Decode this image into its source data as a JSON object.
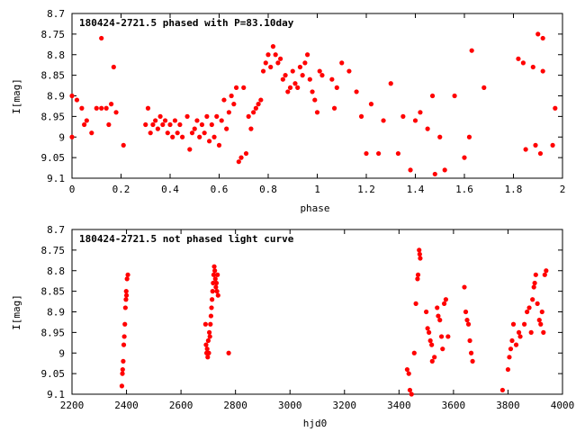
{
  "colors": {
    "points": "#ff0000",
    "axes": "#000000",
    "background": "#ffffff"
  },
  "chart_data": [
    {
      "type": "scatter",
      "title": "180424-2721.5 phased with P=83.10day",
      "xlabel": "phase",
      "ylabel": "I[mag]",
      "xlim": [
        0,
        2
      ],
      "ylim": [
        8.7,
        9.1
      ],
      "y_inverted": true,
      "grid": false,
      "legend": "none",
      "xticks": [
        "0",
        "0.2",
        "0.4",
        "0.6",
        "0.8",
        "1",
        "1.2",
        "1.4",
        "1.6",
        "1.8",
        "2"
      ],
      "yticks": [
        "8.7",
        "8.75",
        "8.8",
        "8.85",
        "8.9",
        "8.95",
        "9",
        "9.05",
        "9.1"
      ],
      "points": [
        [
          0.0,
          8.9
        ],
        [
          0.0,
          9.0
        ],
        [
          0.02,
          8.91
        ],
        [
          0.04,
          8.93
        ],
        [
          0.05,
          8.97
        ],
        [
          0.06,
          8.96
        ],
        [
          0.08,
          8.99
        ],
        [
          0.1,
          8.93
        ],
        [
          0.12,
          8.76
        ],
        [
          0.12,
          8.93
        ],
        [
          0.14,
          8.93
        ],
        [
          0.15,
          8.97
        ],
        [
          0.16,
          8.92
        ],
        [
          0.17,
          8.83
        ],
        [
          0.18,
          8.94
        ],
        [
          0.21,
          9.02
        ],
        [
          0.3,
          8.97
        ],
        [
          0.31,
          8.93
        ],
        [
          0.32,
          8.99
        ],
        [
          0.33,
          8.97
        ],
        [
          0.34,
          8.96
        ],
        [
          0.35,
          8.98
        ],
        [
          0.36,
          8.95
        ],
        [
          0.37,
          8.97
        ],
        [
          0.38,
          8.96
        ],
        [
          0.39,
          8.99
        ],
        [
          0.4,
          8.97
        ],
        [
          0.41,
          9.0
        ],
        [
          0.42,
          8.96
        ],
        [
          0.43,
          8.99
        ],
        [
          0.44,
          8.97
        ],
        [
          0.45,
          9.0
        ],
        [
          0.47,
          8.95
        ],
        [
          0.48,
          9.03
        ],
        [
          0.49,
          8.99
        ],
        [
          0.5,
          8.98
        ],
        [
          0.51,
          8.96
        ],
        [
          0.52,
          9.0
        ],
        [
          0.53,
          8.97
        ],
        [
          0.54,
          8.99
        ],
        [
          0.55,
          8.95
        ],
        [
          0.56,
          9.01
        ],
        [
          0.57,
          8.97
        ],
        [
          0.58,
          9.0
        ],
        [
          0.59,
          8.95
        ],
        [
          0.6,
          9.02
        ],
        [
          0.61,
          8.96
        ],
        [
          0.62,
          8.91
        ],
        [
          0.63,
          8.98
        ],
        [
          0.64,
          8.94
        ],
        [
          0.65,
          8.9
        ],
        [
          0.66,
          8.92
        ],
        [
          0.67,
          8.88
        ],
        [
          0.68,
          9.06
        ],
        [
          0.69,
          9.05
        ],
        [
          0.7,
          8.88
        ],
        [
          0.71,
          9.04
        ],
        [
          0.72,
          8.95
        ],
        [
          0.73,
          8.98
        ],
        [
          0.74,
          8.94
        ],
        [
          0.75,
          8.93
        ],
        [
          0.76,
          8.92
        ],
        [
          0.77,
          8.91
        ],
        [
          0.78,
          8.84
        ],
        [
          0.79,
          8.82
        ],
        [
          0.8,
          8.8
        ],
        [
          0.81,
          8.83
        ],
        [
          0.82,
          8.78
        ],
        [
          0.83,
          8.8
        ],
        [
          0.84,
          8.82
        ],
        [
          0.85,
          8.81
        ],
        [
          0.86,
          8.86
        ],
        [
          0.87,
          8.85
        ],
        [
          0.88,
          8.89
        ],
        [
          0.89,
          8.88
        ],
        [
          0.9,
          8.84
        ],
        [
          0.91,
          8.87
        ],
        [
          0.92,
          8.88
        ],
        [
          0.93,
          8.83
        ],
        [
          0.94,
          8.85
        ],
        [
          0.95,
          8.82
        ],
        [
          0.96,
          8.8
        ],
        [
          0.97,
          8.86
        ],
        [
          0.98,
          8.89
        ],
        [
          0.99,
          8.91
        ],
        [
          1.0,
          8.94
        ],
        [
          1.01,
          8.84
        ],
        [
          1.02,
          8.85
        ],
        [
          1.06,
          8.86
        ],
        [
          1.07,
          8.93
        ],
        [
          1.08,
          8.88
        ],
        [
          1.1,
          8.82
        ],
        [
          1.13,
          8.84
        ],
        [
          1.16,
          8.89
        ],
        [
          1.18,
          8.95
        ],
        [
          1.2,
          9.04
        ],
        [
          1.22,
          8.92
        ],
        [
          1.25,
          9.04
        ],
        [
          1.27,
          8.96
        ],
        [
          1.3,
          8.87
        ],
        [
          1.33,
          9.04
        ],
        [
          1.35,
          8.95
        ],
        [
          1.38,
          9.08
        ],
        [
          1.4,
          8.96
        ],
        [
          1.42,
          8.94
        ],
        [
          1.45,
          8.98
        ],
        [
          1.47,
          8.9
        ],
        [
          1.48,
          9.09
        ],
        [
          1.5,
          9.0
        ],
        [
          1.52,
          9.08
        ],
        [
          1.56,
          8.9
        ],
        [
          1.6,
          9.05
        ],
        [
          1.62,
          9.0
        ],
        [
          1.63,
          8.79
        ],
        [
          1.68,
          8.88
        ],
        [
          1.82,
          8.81
        ],
        [
          1.84,
          8.82
        ],
        [
          1.85,
          9.03
        ],
        [
          1.88,
          8.83
        ],
        [
          1.89,
          9.02
        ],
        [
          1.9,
          8.75
        ],
        [
          1.91,
          9.04
        ],
        [
          1.92,
          8.76
        ],
        [
          1.92,
          8.84
        ],
        [
          1.96,
          9.02
        ],
        [
          1.97,
          8.93
        ]
      ]
    },
    {
      "type": "scatter",
      "title": "180424-2721.5 not phased light curve",
      "xlabel": "hjd0",
      "ylabel": "I[mag]",
      "xlim": [
        2200,
        4000
      ],
      "ylim": [
        8.7,
        9.1
      ],
      "y_inverted": true,
      "grid": false,
      "legend": "none",
      "xticks": [
        "2200",
        "2400",
        "2600",
        "2800",
        "3000",
        "3200",
        "3400",
        "3600",
        "3800",
        "4000"
      ],
      "yticks": [
        "8.7",
        "8.75",
        "8.8",
        "8.85",
        "8.9",
        "8.95",
        "9",
        "9.05",
        "9.1"
      ],
      "points": [
        [
          2383,
          9.08
        ],
        [
          2385,
          9.05
        ],
        [
          2386,
          9.04
        ],
        [
          2388,
          9.02
        ],
        [
          2390,
          8.98
        ],
        [
          2392,
          8.96
        ],
        [
          2394,
          8.93
        ],
        [
          2396,
          8.89
        ],
        [
          2398,
          8.87
        ],
        [
          2399,
          8.85
        ],
        [
          2400,
          8.86
        ],
        [
          2402,
          8.82
        ],
        [
          2405,
          8.81
        ],
        [
          2690,
          8.93
        ],
        [
          2692,
          8.98
        ],
        [
          2694,
          9.0
        ],
        [
          2696,
          8.99
        ],
        [
          2698,
          9.01
        ],
        [
          2700,
          8.97
        ],
        [
          2702,
          9.0
        ],
        [
          2704,
          8.95
        ],
        [
          2706,
          8.96
        ],
        [
          2708,
          8.93
        ],
        [
          2710,
          8.91
        ],
        [
          2712,
          8.89
        ],
        [
          2714,
          8.87
        ],
        [
          2716,
          8.85
        ],
        [
          2718,
          8.83
        ],
        [
          2720,
          8.81
        ],
        [
          2722,
          8.79
        ],
        [
          2724,
          8.8
        ],
        [
          2726,
          8.82
        ],
        [
          2728,
          8.84
        ],
        [
          2730,
          8.83
        ],
        [
          2732,
          8.85
        ],
        [
          2734,
          8.81
        ],
        [
          2736,
          8.86
        ],
        [
          2775,
          9.0
        ],
        [
          3430,
          9.04
        ],
        [
          3436,
          9.05
        ],
        [
          3440,
          9.09
        ],
        [
          3446,
          9.1
        ],
        [
          3456,
          9.0
        ],
        [
          3462,
          8.88
        ],
        [
          3468,
          8.82
        ],
        [
          3470,
          8.81
        ],
        [
          3474,
          8.75
        ],
        [
          3476,
          8.76
        ],
        [
          3478,
          8.77
        ],
        [
          3500,
          8.9
        ],
        [
          3505,
          8.94
        ],
        [
          3510,
          8.95
        ],
        [
          3515,
          8.97
        ],
        [
          3520,
          8.98
        ],
        [
          3522,
          9.02
        ],
        [
          3530,
          9.01
        ],
        [
          3540,
          8.89
        ],
        [
          3544,
          8.91
        ],
        [
          3550,
          8.92
        ],
        [
          3556,
          8.96
        ],
        [
          3560,
          8.99
        ],
        [
          3566,
          8.88
        ],
        [
          3572,
          8.87
        ],
        [
          3580,
          8.96
        ],
        [
          3640,
          8.84
        ],
        [
          3645,
          8.9
        ],
        [
          3650,
          8.92
        ],
        [
          3655,
          8.93
        ],
        [
          3660,
          8.97
        ],
        [
          3665,
          9.0
        ],
        [
          3670,
          9.02
        ],
        [
          3780,
          9.09
        ],
        [
          3800,
          9.04
        ],
        [
          3805,
          9.01
        ],
        [
          3810,
          8.99
        ],
        [
          3815,
          8.97
        ],
        [
          3820,
          8.93
        ],
        [
          3830,
          8.98
        ],
        [
          3840,
          8.95
        ],
        [
          3845,
          8.96
        ],
        [
          3860,
          8.93
        ],
        [
          3870,
          8.9
        ],
        [
          3878,
          8.89
        ],
        [
          3885,
          8.95
        ],
        [
          3890,
          8.87
        ],
        [
          3895,
          8.84
        ],
        [
          3898,
          8.83
        ],
        [
          3902,
          8.81
        ],
        [
          3908,
          8.88
        ],
        [
          3915,
          8.92
        ],
        [
          3920,
          8.93
        ],
        [
          3925,
          8.9
        ],
        [
          3930,
          8.95
        ],
        [
          3935,
          8.81
        ],
        [
          3940,
          8.8
        ]
      ]
    }
  ]
}
